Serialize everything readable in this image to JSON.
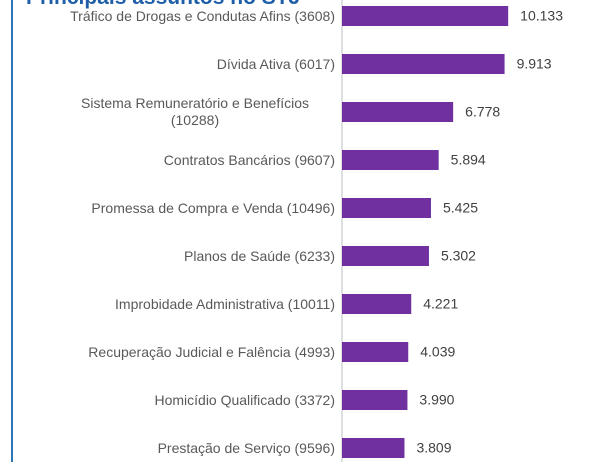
{
  "chart_data": {
    "type": "bar",
    "orientation": "horizontal",
    "title": "Principais assuntos no STJ",
    "categories": [
      "Tráfico de Drogas e Condutas Afins (3608)",
      "Dívida Ativa (6017)",
      "Sistema Remuneratório e Benefícios (10288)",
      "Contratos Bancários (9607)",
      "Promessa de Compra e Venda (10496)",
      "Planos de Saúde (6233)",
      "Improbidade Administrativa (10011)",
      "Recuperação Judicial e Falência (4993)",
      "Homicídio Qualificado (3372)",
      "Prestação de Serviço (9596)"
    ],
    "values": [
      10133,
      9913,
      6778,
      5894,
      5425,
      5302,
      4221,
      4039,
      3990,
      3809
    ],
    "value_labels": [
      "10.133",
      "9.913",
      "6.778",
      "5.894",
      "5.425",
      "5.302",
      "4.221",
      "4.039",
      "3.990",
      "3.809"
    ],
    "color": "#7030a0",
    "xlim": [
      0,
      15000
    ]
  }
}
